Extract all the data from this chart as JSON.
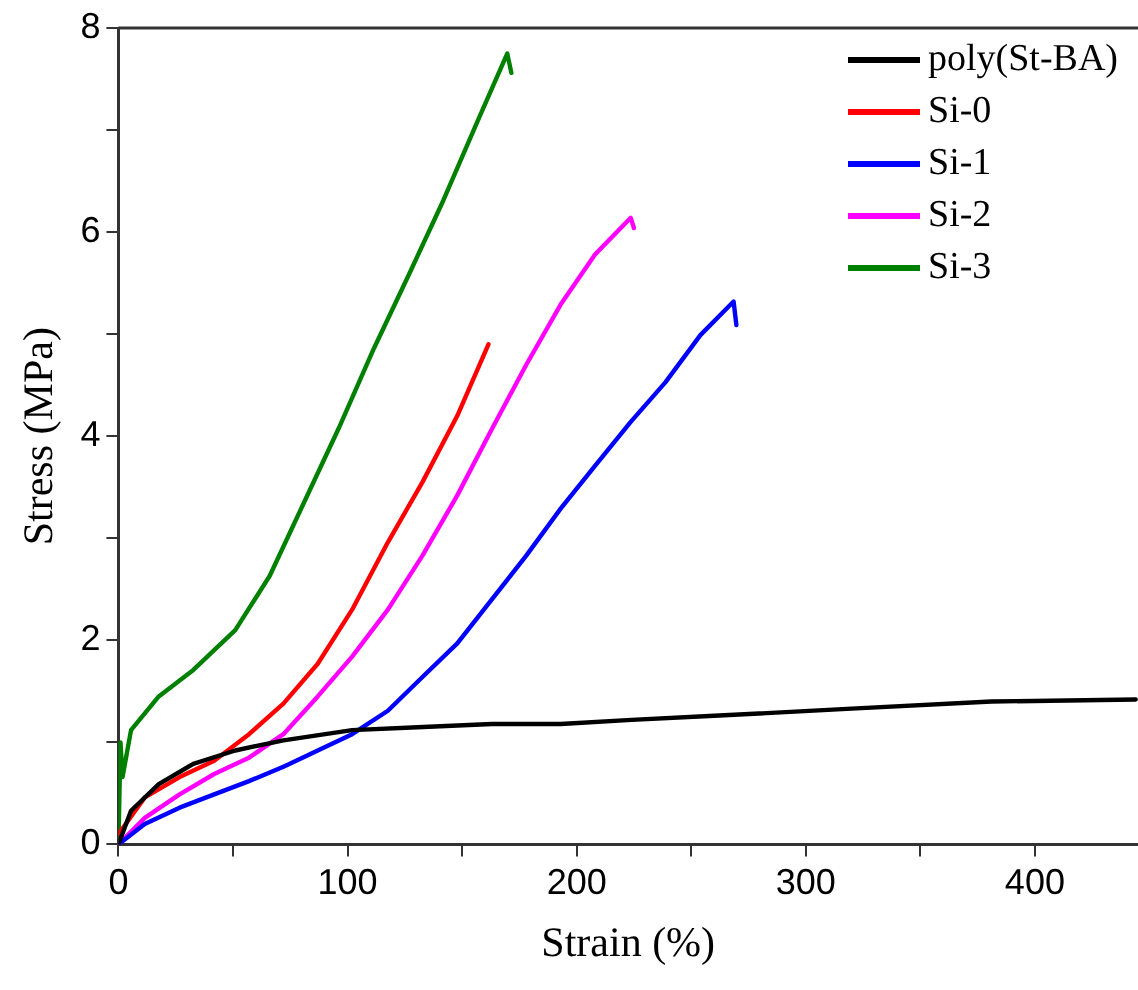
{
  "chart_data": {
    "type": "line",
    "xlabel": "Strain (%)",
    "ylabel": "Stress (MPa)",
    "xlim": [
      0,
      445
    ],
    "ylim": [
      0,
      8
    ],
    "xticks": [
      0,
      {
        "value": 50,
        "label": null
      },
      100,
      {
        "value": 150,
        "label": null
      },
      200,
      {
        "value": 250,
        "label": null
      },
      300,
      {
        "value": 350,
        "label": null
      },
      400
    ],
    "yticks": [
      0,
      {
        "value": 1,
        "label": null
      },
      2,
      {
        "value": 3,
        "label": null
      },
      4,
      {
        "value": 5,
        "label": null
      },
      6,
      {
        "value": 7,
        "label": null
      },
      8
    ],
    "grid": false,
    "legend": "top right",
    "marker": "none",
    "line_style": "solid",
    "series": [
      {
        "name": "poly(St-BA)",
        "color": "#000000",
        "x": [
          0,
          5.5,
          17.6,
          32.7,
          51,
          72,
          102,
          133,
          163,
          193,
          224,
          260,
          320,
          381,
          444
        ],
        "values": [
          0,
          0.33,
          0.59,
          0.79,
          0.92,
          1.02,
          1.12,
          1.15,
          1.18,
          1.18,
          1.22,
          1.26,
          1.33,
          1.4,
          1.42
        ]
      },
      {
        "name": "Si-0",
        "color": "#ff0000",
        "x": [
          0,
          11.5,
          26.7,
          41.8,
          57,
          72,
          87,
          102,
          117.6,
          132.7,
          147.9,
          161.5
        ],
        "values": [
          0.1,
          0.46,
          0.66,
          0.82,
          1.08,
          1.38,
          1.77,
          2.3,
          2.96,
          3.55,
          4.2,
          4.9
        ]
      },
      {
        "name": "Si-1",
        "color": "#0000ff",
        "x": [
          0,
          11.5,
          26.7,
          41.8,
          57,
          72,
          87,
          102,
          117.6,
          132.7,
          147.9,
          163,
          178,
          193,
          208,
          223.6,
          238.8,
          254,
          268.5,
          269.7
        ],
        "values": [
          0,
          0.2,
          0.36,
          0.49,
          0.62,
          0.76,
          0.92,
          1.08,
          1.31,
          1.64,
          1.97,
          2.4,
          2.83,
          3.29,
          3.71,
          4.14,
          4.53,
          4.99,
          5.32,
          5.09
        ]
      },
      {
        "name": "Si-2",
        "color": "#ff00ff",
        "x": [
          0,
          11.5,
          26.7,
          41.8,
          57,
          72,
          87,
          102,
          117.6,
          132.7,
          147.9,
          163,
          178,
          193,
          208,
          223.6,
          225
        ],
        "values": [
          0,
          0.26,
          0.49,
          0.69,
          0.85,
          1.08,
          1.45,
          1.84,
          2.3,
          2.83,
          3.42,
          4.07,
          4.7,
          5.29,
          5.78,
          6.14,
          6.04
        ]
      },
      {
        "name": "Si-3",
        "color": "#008000",
        "x": [
          0,
          0.9,
          1.8,
          5.5,
          17.6,
          32.7,
          51,
          66,
          81,
          96,
          111.5,
          126.7,
          141.8,
          157,
          169.7,
          171.5
        ],
        "values": [
          0,
          1,
          0.66,
          1.12,
          1.45,
          1.71,
          2.1,
          2.63,
          3.35,
          4.07,
          4.86,
          5.58,
          6.31,
          7.1,
          7.75,
          7.56
        ]
      }
    ]
  }
}
